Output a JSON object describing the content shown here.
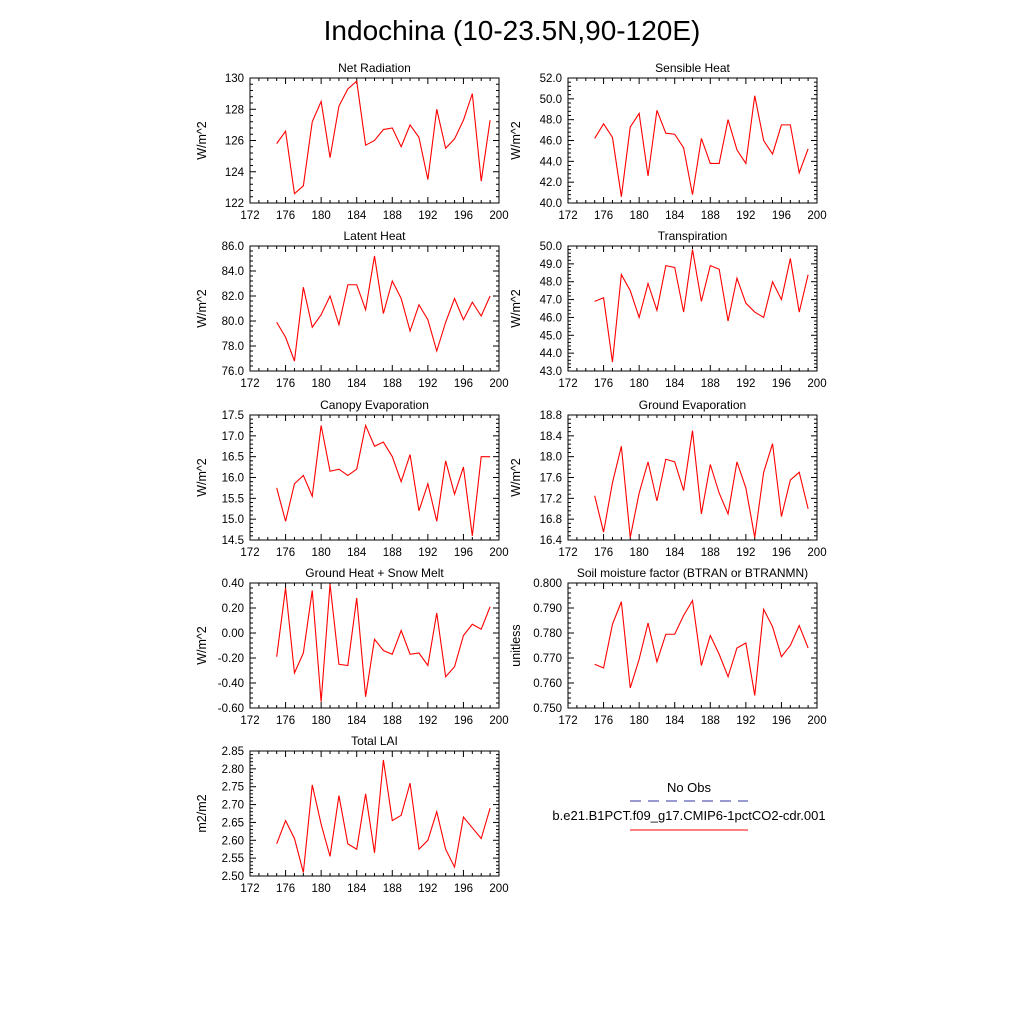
{
  "figure": {
    "title": "Indochina (10-23.5N,90-120E)",
    "legend": {
      "entries": [
        {
          "label": "No Obs",
          "style": "dashed",
          "color": "#3333aa"
        },
        {
          "label": "b.e21.B1PCT.f09_g17.CMIP6-1pctCO2-cdr.001",
          "style": "solid",
          "color": "#ff0000"
        }
      ]
    }
  },
  "chart_data": [
    {
      "type": "line",
      "title": "Net Radiation",
      "xlabel": "",
      "ylabel": "W/m^2",
      "xlim": [
        172,
        200
      ],
      "ylim": [
        122,
        130
      ],
      "xticks": [
        172,
        176,
        180,
        184,
        188,
        192,
        196,
        200
      ],
      "yticks": [
        "122",
        "124",
        "126",
        "128",
        "130"
      ],
      "x": [
        175,
        176,
        177,
        178,
        179,
        180,
        181,
        182,
        183,
        184,
        185,
        186,
        187,
        188,
        189,
        190,
        191,
        192,
        193,
        194,
        195,
        196,
        197,
        198,
        199
      ],
      "series": [
        {
          "color": "#ff0000",
          "values": [
            125.8,
            126.6,
            122.6,
            123.1,
            127.2,
            128.5,
            124.9,
            128.2,
            129.3,
            129.8,
            125.7,
            126.0,
            126.7,
            126.8,
            125.6,
            127.0,
            126.2,
            123.5,
            128.0,
            125.5,
            126.1,
            127.3,
            129.0,
            123.4,
            127.3
          ]
        }
      ]
    },
    {
      "type": "line",
      "title": "Sensible Heat",
      "xlabel": "",
      "ylabel": "W/m^2",
      "xlim": [
        172,
        200
      ],
      "ylim": [
        40,
        52
      ],
      "xticks": [
        172,
        176,
        180,
        184,
        188,
        192,
        196,
        200
      ],
      "yticks": [
        "40.0",
        "42.0",
        "44.0",
        "46.0",
        "48.0",
        "50.0",
        "52.0"
      ],
      "x": [
        175,
        176,
        177,
        178,
        179,
        180,
        181,
        182,
        183,
        184,
        185,
        186,
        187,
        188,
        189,
        190,
        191,
        192,
        193,
        194,
        195,
        196,
        197,
        198,
        199
      ],
      "series": [
        {
          "color": "#ff0000",
          "values": [
            46.2,
            47.6,
            46.3,
            40.6,
            47.3,
            48.6,
            42.6,
            48.9,
            46.7,
            46.6,
            45.3,
            40.8,
            46.2,
            43.8,
            43.8,
            48.0,
            45.1,
            43.8,
            50.3,
            46.0,
            44.7,
            47.5,
            47.5,
            42.9,
            45.2
          ]
        }
      ]
    },
    {
      "type": "line",
      "title": "Latent Heat",
      "xlabel": "",
      "ylabel": "W/m^2",
      "xlim": [
        172,
        200
      ],
      "ylim": [
        76,
        86
      ],
      "xticks": [
        172,
        176,
        180,
        184,
        188,
        192,
        196,
        200
      ],
      "yticks": [
        "76.0",
        "78.0",
        "80.0",
        "82.0",
        "84.0",
        "86.0"
      ],
      "x": [
        175,
        176,
        177,
        178,
        179,
        180,
        181,
        182,
        183,
        184,
        185,
        186,
        187,
        188,
        189,
        190,
        191,
        192,
        193,
        194,
        195,
        196,
        197,
        198,
        199
      ],
      "series": [
        {
          "color": "#ff0000",
          "values": [
            79.9,
            78.7,
            76.8,
            82.7,
            79.5,
            80.5,
            82.0,
            79.7,
            82.9,
            82.9,
            80.9,
            85.2,
            80.6,
            83.2,
            81.8,
            79.2,
            81.3,
            80.1,
            77.6,
            79.9,
            81.8,
            80.1,
            81.5,
            80.4,
            82.0
          ]
        }
      ]
    },
    {
      "type": "line",
      "title": "Transpiration",
      "xlabel": "",
      "ylabel": "W/m^2",
      "xlim": [
        172,
        200
      ],
      "ylim": [
        43,
        50
      ],
      "xticks": [
        172,
        176,
        180,
        184,
        188,
        192,
        196,
        200
      ],
      "yticks": [
        "43.0",
        "44.0",
        "45.0",
        "46.0",
        "47.0",
        "48.0",
        "49.0",
        "50.0"
      ],
      "x": [
        175,
        176,
        177,
        178,
        179,
        180,
        181,
        182,
        183,
        184,
        185,
        186,
        187,
        188,
        189,
        190,
        191,
        192,
        193,
        194,
        195,
        196,
        197,
        198,
        199
      ],
      "series": [
        {
          "color": "#ff0000",
          "values": [
            46.9,
            47.1,
            43.5,
            48.4,
            47.5,
            46.0,
            47.9,
            46.4,
            48.9,
            48.8,
            46.3,
            49.8,
            46.9,
            48.9,
            48.7,
            45.8,
            48.2,
            46.8,
            46.3,
            46.0,
            48.0,
            47.0,
            49.3,
            46.3,
            48.4
          ]
        }
      ]
    },
    {
      "type": "line",
      "title": "Canopy Evaporation",
      "xlabel": "",
      "ylabel": "W/m^2",
      "xlim": [
        172,
        200
      ],
      "ylim": [
        14.5,
        17.5
      ],
      "xticks": [
        172,
        176,
        180,
        184,
        188,
        192,
        196,
        200
      ],
      "yticks": [
        "14.5",
        "15.0",
        "15.5",
        "16.0",
        "16.5",
        "17.0",
        "17.5"
      ],
      "x": [
        175,
        176,
        177,
        178,
        179,
        180,
        181,
        182,
        183,
        184,
        185,
        186,
        187,
        188,
        189,
        190,
        191,
        192,
        193,
        194,
        195,
        196,
        197,
        198,
        199
      ],
      "series": [
        {
          "color": "#ff0000",
          "values": [
            15.75,
            14.95,
            15.85,
            16.05,
            15.55,
            17.25,
            16.15,
            16.2,
            16.05,
            16.2,
            17.25,
            16.75,
            16.85,
            16.5,
            15.9,
            16.55,
            15.2,
            15.85,
            14.95,
            16.4,
            15.6,
            16.25,
            14.6,
            16.5,
            16.5
          ]
        }
      ]
    },
    {
      "type": "line",
      "title": "Ground Evaporation",
      "xlabel": "",
      "ylabel": "W/m^2",
      "xlim": [
        172,
        200
      ],
      "ylim": [
        16.4,
        18.8
      ],
      "xticks": [
        172,
        176,
        180,
        184,
        188,
        192,
        196,
        200
      ],
      "yticks": [
        "16.4",
        "16.8",
        "17.2",
        "17.6",
        "18.0",
        "18.4",
        "18.8"
      ],
      "x": [
        175,
        176,
        177,
        178,
        179,
        180,
        181,
        182,
        183,
        184,
        185,
        186,
        187,
        188,
        189,
        190,
        191,
        192,
        193,
        194,
        195,
        196,
        197,
        198,
        199
      ],
      "series": [
        {
          "color": "#ff0000",
          "values": [
            17.25,
            16.55,
            17.5,
            18.2,
            16.45,
            17.3,
            17.9,
            17.15,
            17.95,
            17.9,
            17.35,
            18.5,
            16.9,
            17.85,
            17.3,
            16.9,
            17.9,
            17.4,
            16.45,
            17.7,
            18.25,
            16.85,
            17.55,
            17.7,
            17.0
          ]
        }
      ]
    },
    {
      "type": "line",
      "title": "Ground Heat + Snow Melt",
      "xlabel": "",
      "ylabel": "W/m^2",
      "xlim": [
        172,
        200
      ],
      "ylim": [
        -0.6,
        0.4
      ],
      "xticks": [
        172,
        176,
        180,
        184,
        188,
        192,
        196,
        200
      ],
      "yticks": [
        "-0.60",
        "-0.40",
        "-0.20",
        "0.00",
        "0.20",
        "0.40"
      ],
      "x": [
        175,
        176,
        177,
        178,
        179,
        180,
        181,
        182,
        183,
        184,
        185,
        186,
        187,
        188,
        189,
        190,
        191,
        192,
        193,
        194,
        195,
        196,
        197,
        198,
        199
      ],
      "series": [
        {
          "color": "#ff0000",
          "values": [
            -0.19,
            0.36,
            -0.32,
            -0.16,
            0.34,
            -0.55,
            0.39,
            -0.25,
            -0.26,
            0.28,
            -0.51,
            -0.05,
            -0.14,
            -0.17,
            0.02,
            -0.17,
            -0.16,
            -0.26,
            0.16,
            -0.35,
            -0.27,
            -0.02,
            0.07,
            0.03,
            0.21
          ]
        }
      ]
    },
    {
      "type": "line",
      "title": "Soil moisture factor (BTRAN or BTRANMN)",
      "xlabel": "",
      "ylabel": "unitless",
      "xlim": [
        172,
        200
      ],
      "ylim": [
        0.75,
        0.8
      ],
      "xticks": [
        172,
        176,
        180,
        184,
        188,
        192,
        196,
        200
      ],
      "yticks": [
        "0.750",
        "0.760",
        "0.770",
        "0.780",
        "0.790",
        "0.800"
      ],
      "x": [
        175,
        176,
        177,
        178,
        179,
        180,
        181,
        182,
        183,
        184,
        185,
        186,
        187,
        188,
        189,
        190,
        191,
        192,
        193,
        194,
        195,
        196,
        197,
        198,
        199
      ],
      "series": [
        {
          "color": "#ff0000",
          "values": [
            0.7675,
            0.766,
            0.7835,
            0.7925,
            0.758,
            0.7695,
            0.784,
            0.7685,
            0.7795,
            0.7795,
            0.787,
            0.793,
            0.767,
            0.779,
            0.7715,
            0.7625,
            0.774,
            0.776,
            0.755,
            0.7895,
            0.7825,
            0.7705,
            0.775,
            0.783,
            0.774
          ]
        }
      ]
    },
    {
      "type": "line",
      "title": "Total LAI",
      "xlabel": "",
      "ylabel": "m2/m2",
      "xlim": [
        172,
        200
      ],
      "ylim": [
        2.5,
        2.85
      ],
      "xticks": [
        172,
        176,
        180,
        184,
        188,
        192,
        196,
        200
      ],
      "yticks": [
        "2.50",
        "2.55",
        "2.60",
        "2.65",
        "2.70",
        "2.75",
        "2.80",
        "2.85"
      ],
      "x": [
        175,
        176,
        177,
        178,
        179,
        180,
        181,
        182,
        183,
        184,
        185,
        186,
        187,
        188,
        189,
        190,
        191,
        192,
        193,
        194,
        195,
        196,
        197,
        198,
        199
      ],
      "series": [
        {
          "color": "#ff0000",
          "values": [
            2.59,
            2.655,
            2.605,
            2.51,
            2.755,
            2.645,
            2.555,
            2.725,
            2.59,
            2.575,
            2.73,
            2.565,
            2.825,
            2.655,
            2.67,
            2.76,
            2.575,
            2.6,
            2.68,
            2.575,
            2.525,
            2.665,
            2.635,
            2.605,
            2.69
          ]
        }
      ]
    }
  ]
}
